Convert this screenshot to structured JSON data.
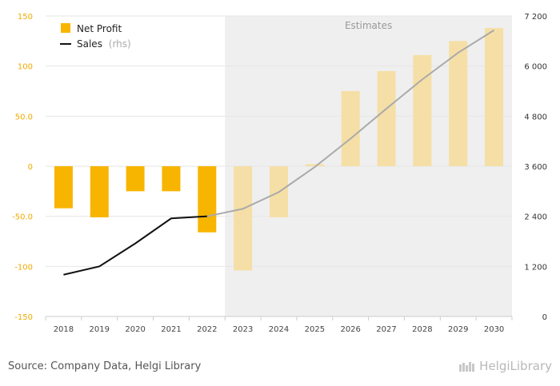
{
  "chart_data": {
    "type": "bar",
    "categories": [
      "2018",
      "2019",
      "2020",
      "2021",
      "2022",
      "2023",
      "2024",
      "2025",
      "2026",
      "2027",
      "2028",
      "2029",
      "2030"
    ],
    "series": [
      {
        "name": "Net Profit",
        "axis": "left",
        "kind": "bar",
        "color": "#f7b500",
        "estimate_color": "#f5dfa6",
        "values": [
          -42,
          -51,
          -25,
          -25,
          -66,
          -104,
          -51,
          2,
          75,
          95,
          111,
          125,
          138
        ]
      },
      {
        "name": "Sales",
        "name_suffix": "(rhs)",
        "axis": "right",
        "kind": "line",
        "color": "#111111",
        "estimate_color": "#aaaaaa",
        "values": [
          1000,
          1200,
          1750,
          2350,
          2400,
          2580,
          2980,
          3580,
          4260,
          4980,
          5680,
          6320,
          6860
        ]
      }
    ],
    "estimates_start": "2023",
    "estimates_label": "Estimates",
    "estimates_shade": "#efefef",
    "ylim_left": [
      -150,
      150
    ],
    "yticks_left": [
      "-150",
      "-100",
      "-50.0",
      "0",
      "50.0",
      "100",
      "150"
    ],
    "ylim_right": [
      0,
      7200
    ],
    "yticks_right": [
      "0",
      "1 200",
      "2 400",
      "3 600",
      "4 800",
      "6 000",
      "7 200"
    ],
    "grid": true,
    "legend_position": "top-left"
  },
  "footer": {
    "source": "Source: Company Data, Helgi Library",
    "brand": "HelgiLibrary"
  }
}
